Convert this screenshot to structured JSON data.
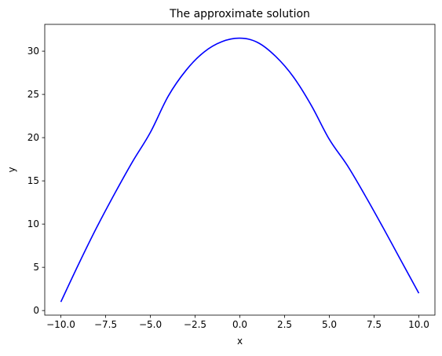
{
  "chart_data": {
    "type": "line",
    "title": "The approximate solution",
    "xlabel": "x",
    "ylabel": "y",
    "xlim": [
      -10.9,
      10.9
    ],
    "ylim": [
      -0.53,
      33.1
    ],
    "grid": false,
    "x_ticks": [
      -10.0,
      -7.5,
      -5.0,
      -2.5,
      0.0,
      2.5,
      5.0,
      7.5,
      10.0
    ],
    "x_tick_labels": [
      "−10.0",
      "−7.5",
      "−5.0",
      "−2.5",
      "0.0",
      "2.5",
      "5.0",
      "7.5",
      "10.0"
    ],
    "y_ticks": [
      0,
      5,
      10,
      15,
      20,
      25,
      30
    ],
    "y_tick_labels": [
      "0",
      "5",
      "10",
      "15",
      "20",
      "25",
      "30"
    ],
    "series": [
      {
        "color": "#0000ff",
        "x": [
          -10.0,
          -9.0,
          -8.0,
          -7.0,
          -6.0,
          -5.0,
          -4.0,
          -3.0,
          -2.0,
          -1.0,
          0.0,
          1.0,
          2.0,
          3.0,
          4.0,
          5.0,
          6.0,
          7.0,
          8.0,
          9.0,
          10.0
        ],
        "y": [
          1.0,
          5.4,
          9.6,
          13.5,
          17.2,
          20.6,
          24.8,
          27.8,
          29.9,
          31.1,
          31.5,
          31.0,
          29.4,
          27.0,
          23.7,
          19.8,
          16.8,
          13.3,
          9.6,
          5.8,
          2.0
        ]
      }
    ]
  }
}
